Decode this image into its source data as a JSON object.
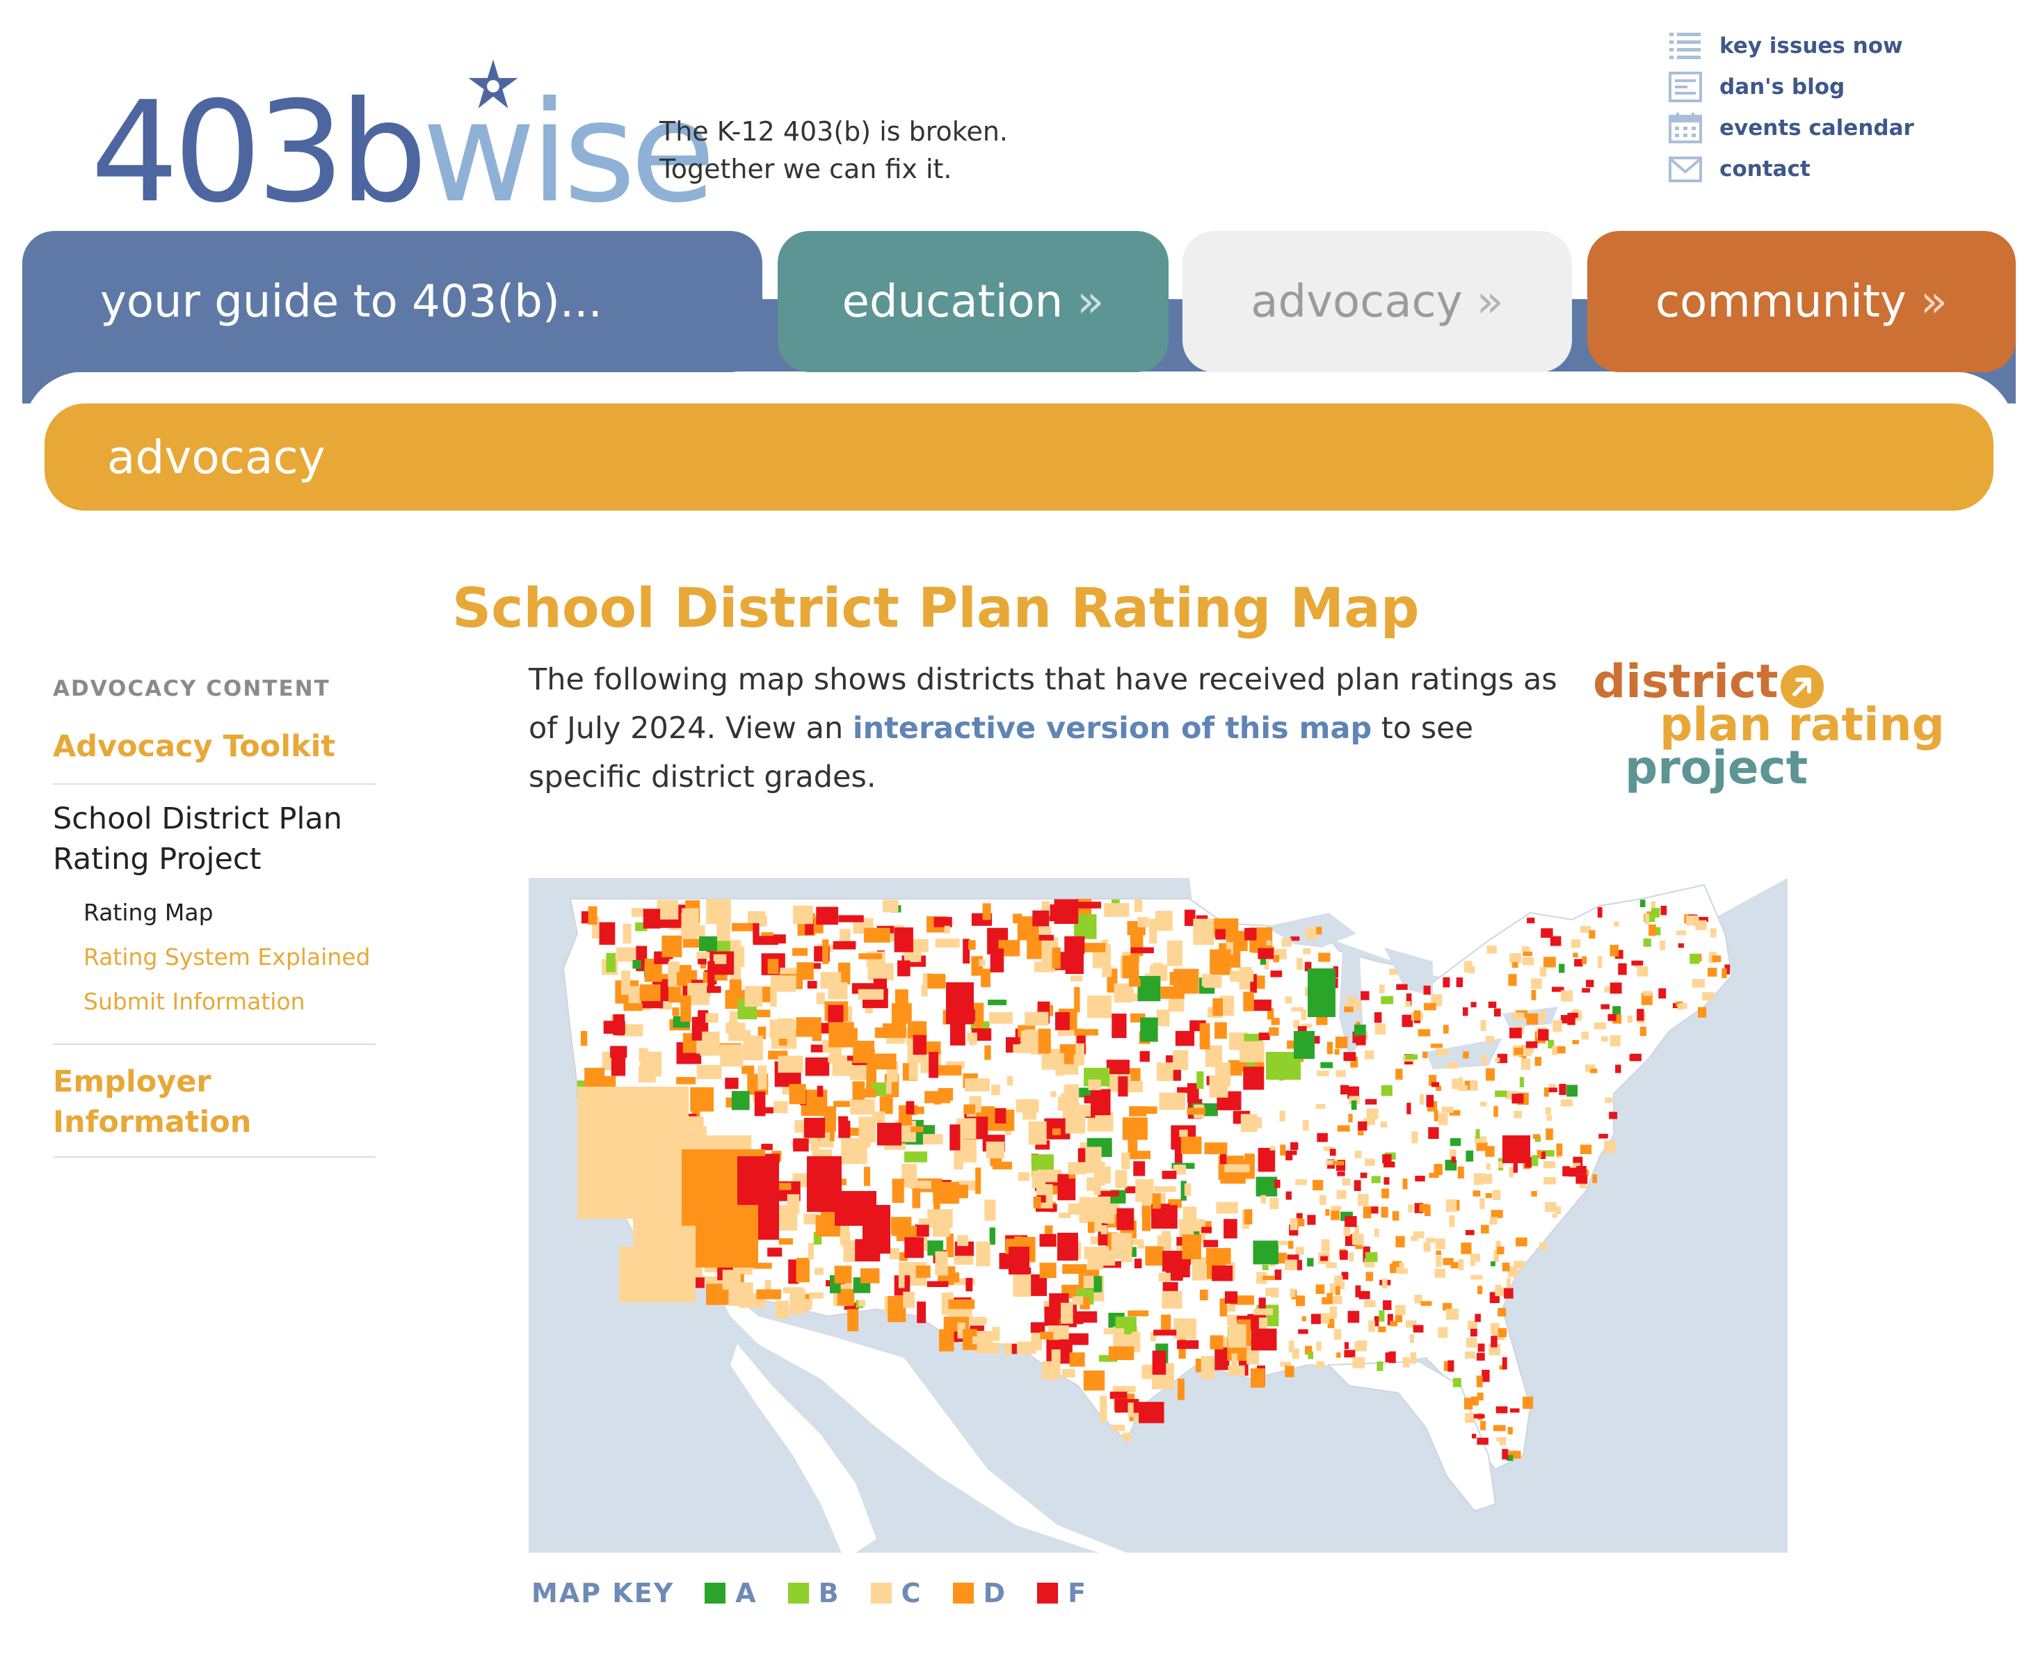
{
  "logo": {
    "part1": "403b",
    "part2": "wise"
  },
  "tagline": {
    "line1": "The K-12 403(b) is broken.",
    "line2": "Together we can fix it."
  },
  "utility_links": [
    {
      "label": "key issues now",
      "icon": "list-icon"
    },
    {
      "label": "dan's blog",
      "icon": "blog-icon"
    },
    {
      "label": "events calendar",
      "icon": "calendar-icon"
    },
    {
      "label": "contact",
      "icon": "envelope-icon"
    }
  ],
  "nav": {
    "guide": "your guide to 403(b)...",
    "education": "education",
    "advocacy": "advocacy",
    "community": "community",
    "arrow": "»"
  },
  "subbar": "advocacy",
  "page_title": "School District Plan Rating Map",
  "sidebar": {
    "heading": "ADVOCACY CONTENT",
    "toolkit": "Advocacy Toolkit",
    "current": "School District Plan Rating Project",
    "subitems": [
      "Rating Map",
      "Rating System Explained",
      "Submit Information"
    ],
    "employer": "Employer Information"
  },
  "intro": {
    "before": "The following map shows districts that have received plan ratings as of July 2024. View an ",
    "link": "interactive version of this map",
    "after": " to see specific district grades."
  },
  "badge": {
    "line1": "district",
    "line2": "plan rating",
    "line3": "project"
  },
  "map_key": {
    "label": "MAP KEY",
    "items": [
      {
        "grade": "A",
        "color": "#2aa52a"
      },
      {
        "grade": "B",
        "color": "#8fd12a"
      },
      {
        "grade": "C",
        "color": "#ffd596"
      },
      {
        "grade": "D",
        "color": "#ff9319"
      },
      {
        "grade": "F",
        "color": "#e8141b"
      }
    ]
  },
  "colors": {
    "nav_blue": "#5f79a7",
    "nav_teal": "#5c9594",
    "nav_gray": "#efefef",
    "nav_orange": "#cc7034",
    "accent_gold": "#e8a837",
    "ocean": "#d4dfea"
  }
}
